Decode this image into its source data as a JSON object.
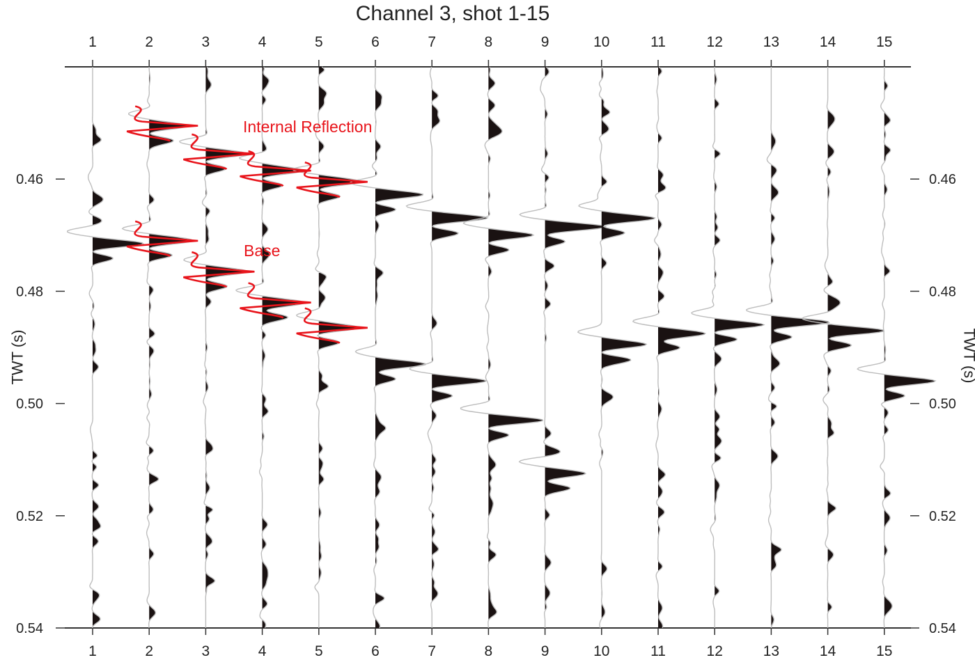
{
  "chart_data": {
    "type": "seismic-wiggle",
    "title": "Channel 3, shot 1-15",
    "ylabel": "TWT (s)",
    "ylim": [
      0.44,
      0.54
    ],
    "y_ticks": [
      "0.46",
      "0.48",
      "0.50",
      "0.52",
      "0.54"
    ],
    "traces": [
      "1",
      "2",
      "3",
      "4",
      "5",
      "6",
      "7",
      "8",
      "9",
      "10",
      "11",
      "12",
      "13",
      "14",
      "15"
    ],
    "annotations": [
      {
        "text": "Internal Reflection",
        "traces": [
          2,
          3,
          4,
          5
        ],
        "twt": [
          0.4505,
          0.4555,
          0.4585,
          0.4605
        ]
      },
      {
        "text": "Base",
        "traces": [
          2,
          3,
          4,
          5
        ],
        "twt": [
          0.471,
          0.4765,
          0.482,
          0.4865
        ]
      }
    ],
    "strong_reflections": [
      {
        "trace": 1,
        "twt": 0.4715
      },
      {
        "trace": 6,
        "twt": 0.4628
      },
      {
        "trace": 7,
        "twt": 0.467
      },
      {
        "trace": 8,
        "twt": 0.47
      },
      {
        "trace": 9,
        "twt": 0.4685
      },
      {
        "trace": 10,
        "twt": 0.467
      },
      {
        "trace": 6,
        "twt": 0.493
      },
      {
        "trace": 7,
        "twt": 0.496
      },
      {
        "trace": 8,
        "twt": 0.503
      },
      {
        "trace": 9,
        "twt": 0.5125
      },
      {
        "trace": 10,
        "twt": 0.4895
      },
      {
        "trace": 11,
        "twt": 0.4875
      },
      {
        "trace": 12,
        "twt": 0.486
      },
      {
        "trace": 13,
        "twt": 0.4855
      },
      {
        "trace": 14,
        "twt": 0.487
      },
      {
        "trace": 15,
        "twt": 0.496
      }
    ],
    "colors": {
      "trace_line": "#bdbdbd",
      "trace_fill": "#1a1212",
      "highlight": "#e8141b",
      "axis": "#333333"
    }
  }
}
